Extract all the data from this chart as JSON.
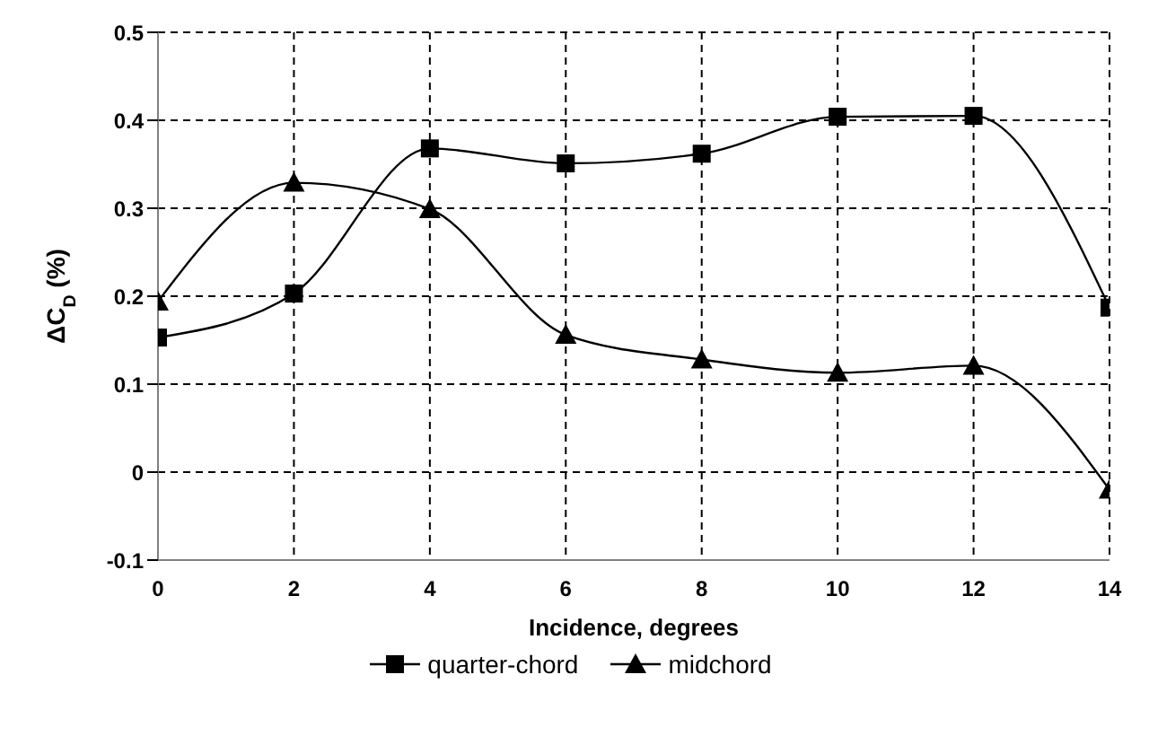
{
  "chart_data": {
    "type": "line",
    "xlabel": "Incidence, degrees",
    "ylabel": "ΔC$_{D}$ (%)",
    "x": [
      0,
      2,
      4,
      6,
      8,
      10,
      12,
      14
    ],
    "series": [
      {
        "name": "quarter-chord",
        "color": "#000000",
        "marker": "square",
        "values": [
          0.153,
          0.203,
          0.368,
          0.351,
          0.362,
          0.404,
          0.405,
          0.187
        ]
      },
      {
        "name": "midchord",
        "color": "#000000",
        "marker": "triangle",
        "values": [
          0.194,
          0.329,
          0.299,
          0.156,
          0.128,
          0.113,
          0.121,
          -0.02
        ]
      }
    ],
    "xlim": [
      0,
      14
    ],
    "xticks": [
      0,
      2,
      4,
      6,
      8,
      10,
      12,
      14
    ],
    "ylim": [
      -0.1,
      0.5
    ],
    "yticks": [
      -0.1,
      0,
      0.1,
      0.2,
      0.3,
      0.4,
      0.5
    ],
    "grid": true,
    "legend": "bottom"
  }
}
